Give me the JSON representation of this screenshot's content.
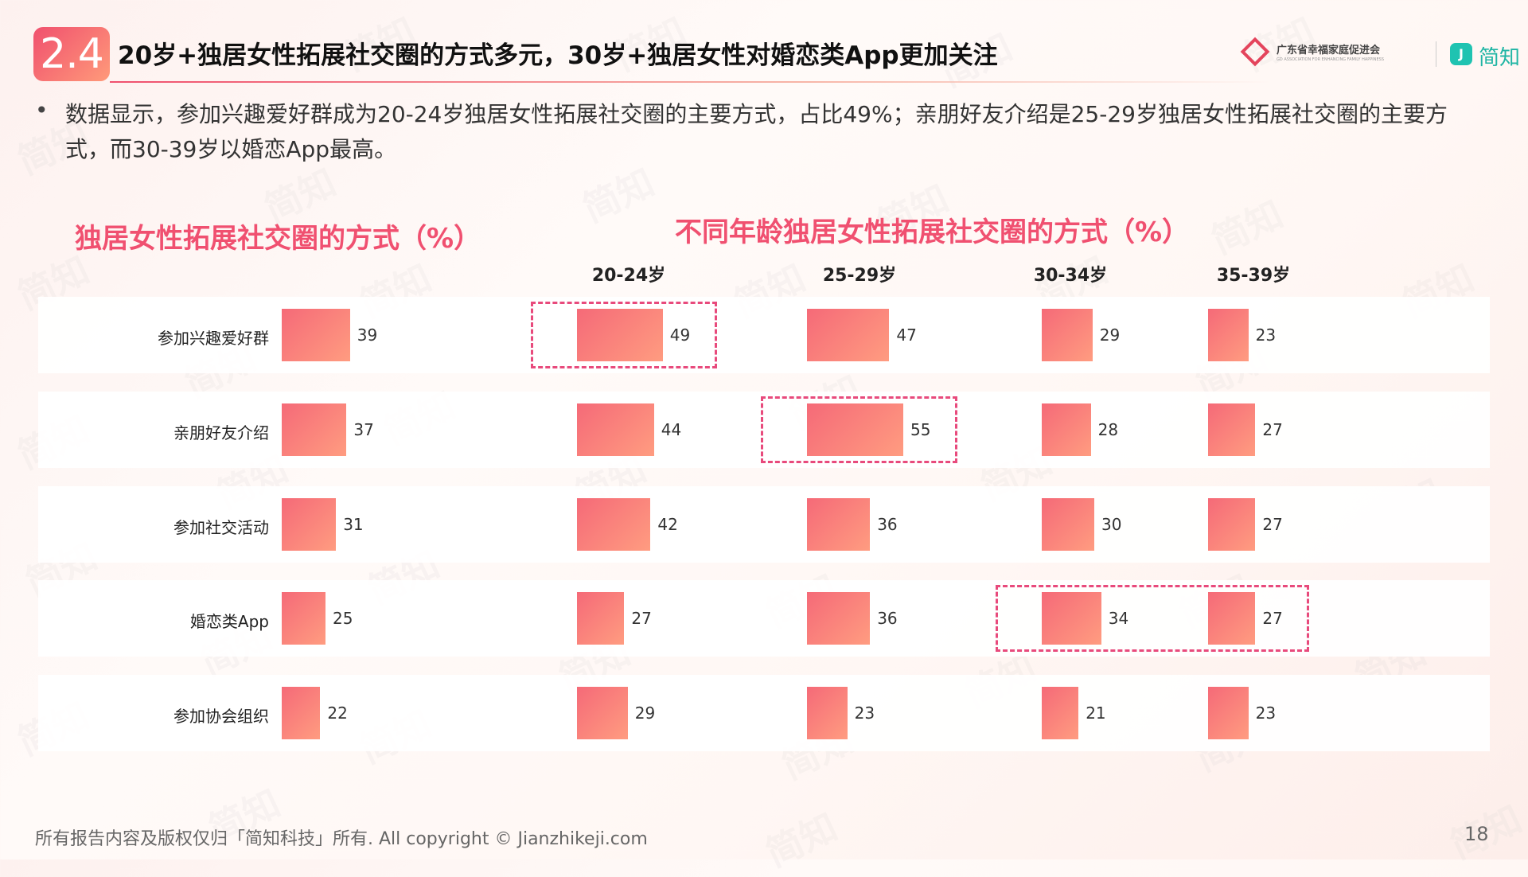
{
  "header": {
    "number": "2.4",
    "title": "20岁+独居女性拓展社交圈的方式多元，30岁+独居女性对婚恋类App更加关注",
    "org_name": "广东省幸福家庭促进会",
    "org_sub": "GD ASSOCIATION FOR ENHANCING FAMILY HAPPINESS",
    "brand_icon": "J",
    "brand_name": "简知"
  },
  "bullet": "•",
  "description": "数据显示，参加兴趣爱好群成为20-24岁独居女性拓展社交圈的主要方式，占比49%；亲朋好友介绍是25-29岁独居女性拓展社交圈的主要方式，而30-39岁以婚恋App最高。",
  "left_title": "独居女性拓展社交圈的方式（%）",
  "right_title": "不同年龄独居女性拓展社交圈的方式（%）",
  "footer": "所有报告内容及版权仅归「简知科技」所有.   All copyright © Jianzhikeji.com",
  "page_number": "18",
  "watermark_text": "简知",
  "colors": {
    "accent": "#f05070",
    "bar_start": "#f56a78",
    "bar_end": "#ff9c80",
    "highlight": "#e84a7c"
  },
  "chart_data": [
    {
      "type": "bar",
      "orientation": "horizontal",
      "title": "独居女性拓展社交圈的方式（%）",
      "categories": [
        "参加兴趣爱好群",
        "亲朋好友介绍",
        "参加社交活动",
        "婚恋类App",
        "参加协会组织"
      ],
      "values": [
        39,
        37,
        31,
        25,
        22
      ]
    },
    {
      "type": "bar",
      "orientation": "horizontal",
      "title": "不同年龄独居女性拓展社交圈的方式（%）",
      "categories": [
        "参加兴趣爱好群",
        "亲朋好友介绍",
        "参加社交活动",
        "婚恋类App",
        "参加协会组织"
      ],
      "series": [
        {
          "name": "20-24岁",
          "values": [
            49,
            44,
            42,
            27,
            29
          ]
        },
        {
          "name": "25-29岁",
          "values": [
            47,
            55,
            36,
            36,
            23
          ]
        },
        {
          "name": "30-34岁",
          "values": [
            29,
            28,
            30,
            34,
            21
          ]
        },
        {
          "name": "35-39岁",
          "values": [
            23,
            27,
            27,
            27,
            23
          ]
        }
      ],
      "highlighted": [
        {
          "series": "20-24岁",
          "category": "参加兴趣爱好群"
        },
        {
          "series": "25-29岁",
          "category": "亲朋好友介绍"
        },
        {
          "series": "30-34岁",
          "category": "婚恋类App"
        },
        {
          "series": "35-39岁",
          "category": "婚恋类App"
        }
      ]
    }
  ]
}
